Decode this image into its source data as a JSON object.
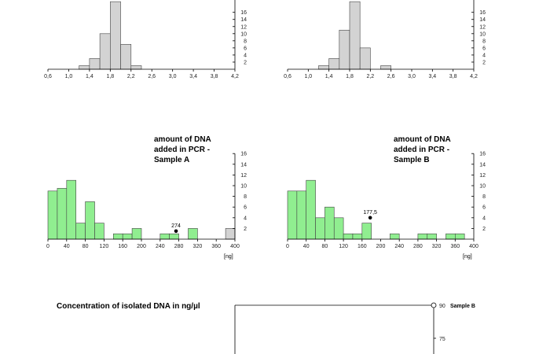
{
  "chart_data": [
    {
      "id": "top-left",
      "type": "bar",
      "title": "",
      "xlabel": "",
      "ylabel": "",
      "bin_width": 0.2,
      "bins": [
        1.2,
        1.4,
        1.6,
        1.8,
        2.0,
        2.2
      ],
      "values": [
        1,
        3,
        10,
        19,
        7,
        1
      ],
      "xlim": [
        0.6,
        4.2
      ],
      "ylim": [
        0,
        16
      ],
      "xticks": [
        "0,6",
        "1,0",
        "1,4",
        "1,8",
        "2,2",
        "2,6",
        "3,0",
        "3,4",
        "3,8",
        "4,2"
      ],
      "xtick_values": [
        0.6,
        1.0,
        1.4,
        1.8,
        2.2,
        2.6,
        3.0,
        3.4,
        3.8,
        4.2
      ],
      "yticks": [
        "2",
        "4",
        "6",
        "8",
        "10",
        "12",
        "14",
        "16"
      ],
      "ytick_values": [
        2,
        4,
        6,
        8,
        10,
        12,
        14,
        16
      ],
      "bar_color": "#d3d3d3"
    },
    {
      "id": "top-right",
      "type": "bar",
      "title": "",
      "xlabel": "",
      "ylabel": "",
      "bin_width": 0.2,
      "bins": [
        1.2,
        1.4,
        1.6,
        1.8,
        2.0,
        2.4
      ],
      "values": [
        1,
        3,
        11,
        19,
        6,
        1
      ],
      "xlim": [
        0.6,
        4.2
      ],
      "ylim": [
        0,
        16
      ],
      "xticks": [
        "0,6",
        "1,0",
        "1,4",
        "1,8",
        "2,2",
        "2,6",
        "3,0",
        "3,4",
        "3,8",
        "4,2"
      ],
      "xtick_values": [
        0.6,
        1.0,
        1.4,
        1.8,
        2.2,
        2.6,
        3.0,
        3.4,
        3.8,
        4.2
      ],
      "yticks": [
        "2",
        "4",
        "6",
        "8",
        "10",
        "12",
        "14",
        "16"
      ],
      "ytick_values": [
        2,
        4,
        6,
        8,
        10,
        12,
        14,
        16
      ],
      "bar_color": "#d3d3d3"
    },
    {
      "id": "mid-left",
      "type": "bar",
      "title": [
        "amount of DNA",
        "added in PCR -",
        "Sample A"
      ],
      "xlabel": "[ng]",
      "ylabel": "",
      "bin_width": 20,
      "bins": [
        0,
        20,
        40,
        60,
        80,
        100,
        140,
        160,
        180,
        240,
        260,
        300,
        380
      ],
      "values": [
        9,
        9.5,
        11,
        3,
        7,
        3,
        1,
        1,
        2,
        1,
        1,
        2,
        2
      ],
      "bar_colors": [
        "#90ee90",
        "#90ee90",
        "#90ee90",
        "#90ee90",
        "#90ee90",
        "#90ee90",
        "#90ee90",
        "#90ee90",
        "#90ee90",
        "#90ee90",
        "#90ee90",
        "#90ee90",
        "#d3d3d3"
      ],
      "marker": {
        "x": 274,
        "y": 1.5,
        "label": "274"
      },
      "xlim": [
        0,
        400
      ],
      "ylim": [
        0,
        16
      ],
      "xticks": [
        "0",
        "40",
        "80",
        "120",
        "160",
        "200",
        "240",
        "280",
        "320",
        "360",
        "400"
      ],
      "xtick_values": [
        0,
        40,
        80,
        120,
        160,
        200,
        240,
        280,
        320,
        360,
        400
      ],
      "yticks": [
        "2",
        "4",
        "6",
        "8",
        "10",
        "12",
        "14",
        "16"
      ],
      "ytick_values": [
        2,
        4,
        6,
        8,
        10,
        12,
        14,
        16
      ],
      "bar_color": "#90ee90"
    },
    {
      "id": "mid-right",
      "type": "bar",
      "title": [
        "amount of DNA",
        "added in PCR -",
        "Sample B"
      ],
      "xlabel": "[ng]",
      "ylabel": "",
      "bin_width": 20,
      "bins": [
        0,
        20,
        40,
        60,
        80,
        100,
        120,
        140,
        160,
        220,
        280,
        300,
        340,
        360
      ],
      "values": [
        9,
        9,
        11,
        4,
        6,
        4,
        1,
        1,
        3,
        1,
        1,
        1,
        1,
        1
      ],
      "marker": {
        "x": 177.5,
        "y": 4,
        "label": "177,5"
      },
      "xlim": [
        0,
        400
      ],
      "ylim": [
        0,
        16
      ],
      "xticks": [
        "0",
        "40",
        "80",
        "120",
        "160",
        "200",
        "240",
        "280",
        "320",
        "360",
        "400"
      ],
      "xtick_values": [
        0,
        40,
        80,
        120,
        160,
        200,
        240,
        280,
        320,
        360,
        400
      ],
      "yticks": [
        "2",
        "4",
        "6",
        "8",
        "10",
        "12",
        "14",
        "16"
      ],
      "ytick_values": [
        2,
        4,
        6,
        8,
        10,
        12,
        14,
        16
      ],
      "bar_color": "#90ee90"
    },
    {
      "id": "bottom",
      "type": "line",
      "title": "Concentration of isolated DNA in ng/µl",
      "xlabel": "",
      "ylabel": "",
      "series": [
        {
          "name": "Sample B",
          "y": 90
        }
      ],
      "yticks": [
        "90",
        "75"
      ],
      "ytick_values": [
        90,
        75
      ]
    }
  ]
}
